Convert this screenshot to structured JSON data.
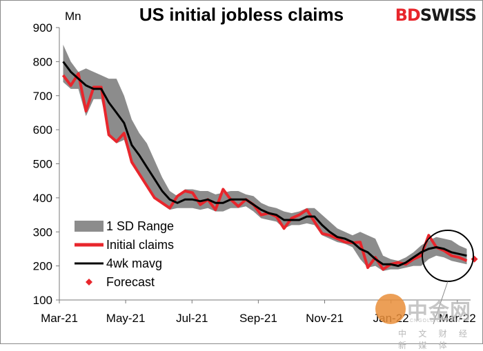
{
  "chart_data": {
    "type": "line",
    "title": "US initial jobless claims",
    "ylabel": "Mn",
    "ylim": [
      100,
      900
    ],
    "yticks": [
      100,
      200,
      300,
      400,
      500,
      600,
      700,
      800,
      900
    ],
    "xtick_labels": [
      "Mar-21",
      "May-21",
      "Jul-21",
      "Sep-21",
      "Nov-21",
      "Jan-22",
      "Mar-22"
    ],
    "weeks": 54,
    "legend": [
      "1 SD Range",
      "Initial claims",
      "4wk mavg",
      "Forecast"
    ],
    "legend_position": "bottom-left",
    "series": [
      {
        "name": "Initial claims",
        "values": [
          760,
          730,
          765,
          655,
          725,
          725,
          585,
          565,
          590,
          505,
          470,
          435,
          400,
          385,
          370,
          405,
          420,
          415,
          380,
          395,
          365,
          425,
          395,
          375,
          395,
          380,
          350,
          355,
          345,
          310,
          340,
          350,
          365,
          330,
          295,
          290,
          280,
          270,
          268,
          270,
          195,
          225,
          190,
          205,
          210,
          205,
          220,
          230,
          290,
          255,
          245,
          230,
          225,
          215
        ]
      },
      {
        "name": "4wk mavg",
        "values": [
          800,
          770,
          750,
          730,
          720,
          720,
          680,
          650,
          620,
          555,
          525,
          490,
          455,
          420,
          395,
          385,
          395,
          395,
          390,
          395,
          385,
          385,
          395,
          395,
          395,
          380,
          365,
          355,
          350,
          335,
          335,
          335,
          345,
          345,
          320,
          300,
          285,
          280,
          270,
          250,
          240,
          220,
          205,
          205,
          200,
          210,
          225,
          240,
          250,
          255,
          250,
          240,
          235,
          230
        ]
      },
      {
        "name": "1 SD Range upper",
        "values": [
          850,
          800,
          770,
          780,
          770,
          760,
          750,
          750,
          700,
          630,
          590,
          560,
          510,
          460,
          420,
          405,
          425,
          425,
          420,
          420,
          410,
          415,
          420,
          420,
          410,
          405,
          385,
          375,
          370,
          360,
          355,
          360,
          370,
          370,
          350,
          330,
          310,
          300,
          290,
          300,
          290,
          280,
          230,
          220,
          215,
          225,
          240,
          260,
          275,
          285,
          280,
          275,
          260,
          250
        ]
      },
      {
        "name": "1 SD Range lower",
        "values": [
          740,
          720,
          720,
          640,
          690,
          690,
          590,
          560,
          570,
          500,
          465,
          430,
          400,
          380,
          365,
          370,
          370,
          370,
          365,
          370,
          360,
          360,
          370,
          370,
          375,
          360,
          340,
          335,
          330,
          310,
          320,
          320,
          325,
          320,
          290,
          280,
          270,
          265,
          255,
          220,
          195,
          200,
          185,
          190,
          190,
          195,
          200,
          200,
          220,
          230,
          225,
          215,
          210,
          205
        ]
      }
    ],
    "forecast": {
      "week": 54,
      "value": 220
    }
  },
  "watermark": {
    "text": "中金网",
    "sub": "中 文 财 经 新 媒 体",
    "url": "CNGOLD.COM.CN"
  }
}
